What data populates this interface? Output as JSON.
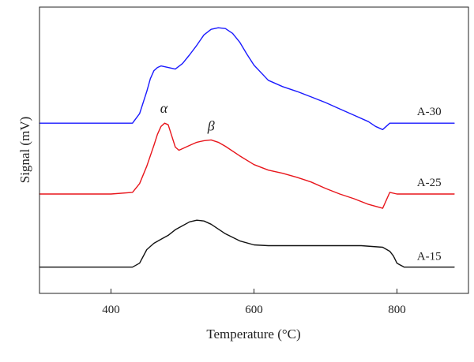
{
  "chart_data": {
    "type": "line",
    "xlabel": "Temperature (°C)",
    "ylabel": "Signal (mV)",
    "xlim": [
      300,
      900
    ],
    "ylim": [
      0,
      360
    ],
    "xticks": [
      "400",
      "600",
      "800"
    ],
    "xtick_values": [
      400,
      600,
      800
    ],
    "show_yticks": false,
    "grid": false,
    "series": [
      {
        "name": "A-30",
        "color": "#1a1aff",
        "x": [
          300,
          400,
          430,
          440,
          450,
          455,
          460,
          465,
          470,
          480,
          490,
          500,
          510,
          520,
          530,
          540,
          550,
          560,
          570,
          580,
          590,
          600,
          620,
          640,
          660,
          680,
          700,
          720,
          740,
          760,
          770,
          780,
          790,
          800,
          850,
          880
        ],
        "y": [
          214,
          214,
          214,
          226,
          254,
          270,
          280,
          284,
          286,
          284,
          282,
          289,
          300,
          312,
          325,
          332,
          334,
          333,
          327,
          316,
          301,
          287,
          268,
          260,
          254,
          247,
          240,
          232,
          224,
          216,
          210,
          206,
          214,
          214,
          214,
          214
        ]
      },
      {
        "name": "A-25",
        "color": "#e8151b",
        "x": [
          300,
          400,
          430,
          440,
          450,
          460,
          465,
          470,
          475,
          480,
          485,
          490,
          495,
          500,
          510,
          520,
          530,
          540,
          550,
          560,
          580,
          600,
          620,
          640,
          660,
          680,
          700,
          720,
          740,
          760,
          780,
          790,
          800,
          850,
          880
        ],
        "y": [
          125,
          125,
          127,
          138,
          160,
          186,
          200,
          210,
          214,
          212,
          198,
          184,
          180,
          182,
          186,
          190,
          192,
          193,
          190,
          185,
          173,
          162,
          155,
          151,
          146,
          140,
          132,
          125,
          119,
          112,
          107,
          127,
          125,
          125,
          125
        ]
      },
      {
        "name": "A-15",
        "color": "#111111",
        "x": [
          300,
          400,
          430,
          440,
          450,
          460,
          470,
          480,
          490,
          500,
          510,
          520,
          530,
          540,
          560,
          580,
          600,
          620,
          650,
          700,
          750,
          780,
          790,
          795,
          800,
          810,
          815,
          850,
          880
        ],
        "y": [
          33,
          33,
          33,
          38,
          55,
          63,
          68,
          73,
          80,
          85,
          90,
          92,
          91,
          87,
          75,
          66,
          61,
          60,
          60,
          60,
          60,
          58,
          53,
          47,
          38,
          33,
          33,
          33,
          33
        ]
      }
    ],
    "labels": [
      {
        "text": "A-30",
        "x": 845,
        "y": 224
      },
      {
        "text": "A-25",
        "x": 845,
        "y": 135
      },
      {
        "text": "A-15",
        "x": 845,
        "y": 42
      }
    ],
    "annotations": [
      {
        "text": "α",
        "x": 474,
        "y": 227
      },
      {
        "text": "β",
        "x": 540,
        "y": 205
      }
    ]
  }
}
